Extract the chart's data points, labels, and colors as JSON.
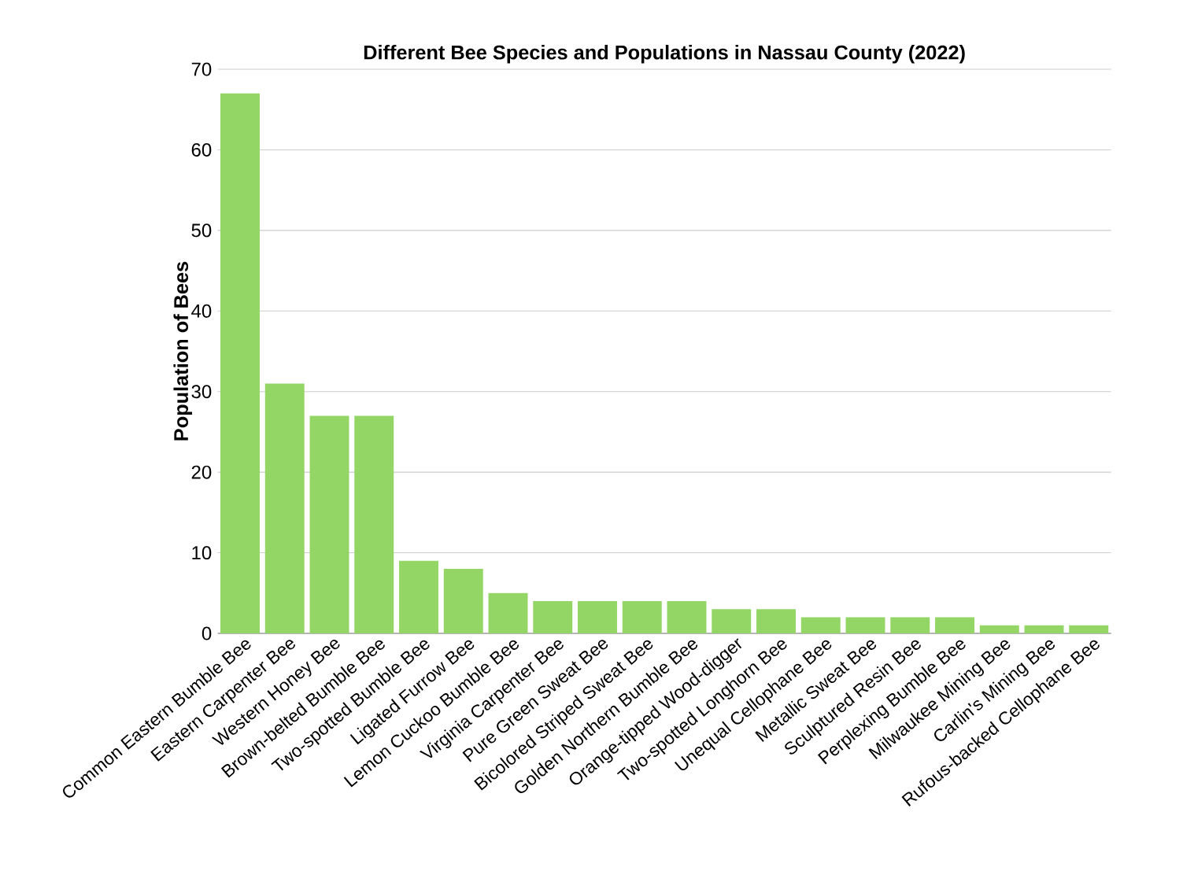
{
  "chart_data": {
    "type": "bar",
    "title": "Different Bee Species and Populations in Nassau County (2022)",
    "ylabel": "Population of Bees",
    "categories": [
      "Common Eastern Bumble Bee",
      "Eastern Carpenter Bee",
      "Western Honey Bee",
      "Brown-belted Bumble Bee",
      "Two-spotted Bumble Bee",
      "Ligated Furrow Bee",
      "Lemon Cuckoo Bumble Bee",
      "Virginia Carpenter Bee",
      "Pure Green Sweat Bee",
      "Bicolored Striped Sweat Bee",
      "Golden Northern Bumble Bee",
      "Orange-tipped Wood-digger",
      "Two-spotted Longhorn Bee",
      "Unequal Cellophane Bee",
      "Metallic Sweat Bee",
      "Sculptured Resin Bee",
      "Perplexing Bumble Bee",
      "Milwaukee Mining Bee",
      "Carlin's Mining Bee",
      "Rufous-backed Cellophane Bee"
    ],
    "values": [
      67,
      31,
      27,
      27,
      9,
      8,
      5,
      4,
      4,
      4,
      4,
      3,
      3,
      2,
      2,
      2,
      2,
      1,
      1,
      1
    ],
    "color": "#93d666",
    "ylim": [
      0,
      70
    ],
    "yticks": [
      0,
      10,
      20,
      30,
      40,
      50,
      60,
      70
    ],
    "grid": "y"
  }
}
